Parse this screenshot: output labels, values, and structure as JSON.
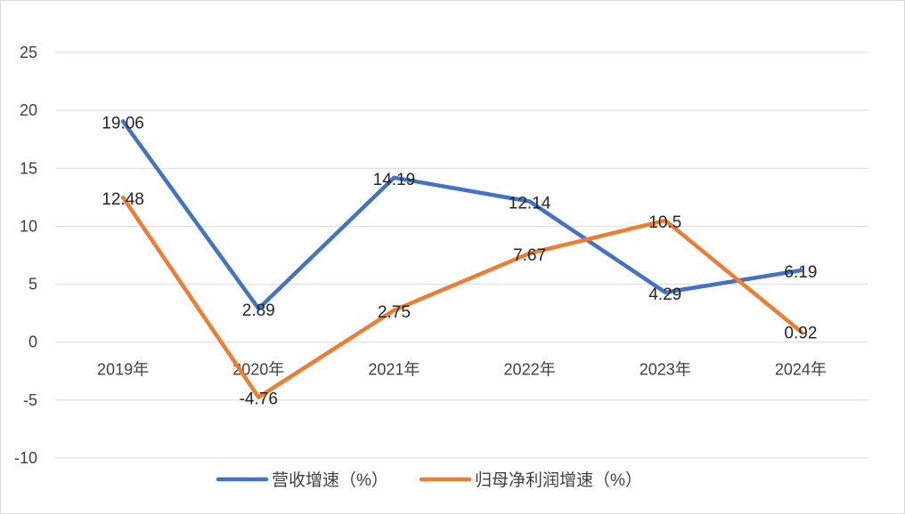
{
  "chart_data": {
    "type": "line",
    "categories": [
      "2019年",
      "2020年",
      "2021年",
      "2022年",
      "2023年",
      "2024年"
    ],
    "series": [
      {
        "name": "营收增速（%）",
        "values": [
          19.06,
          2.89,
          14.19,
          12.14,
          4.29,
          6.19
        ],
        "color": "#4472C4"
      },
      {
        "name": "归母净利润增速（%）",
        "values": [
          12.48,
          -4.76,
          2.75,
          7.67,
          10.5,
          0.92
        ],
        "color": "#ED7D31"
      }
    ],
    "value_labels": [
      [
        "19.06",
        "2.89",
        "14.19",
        "12.14",
        "4.29",
        "6.19"
      ],
      [
        "12.48",
        "-4.76",
        "2.75",
        "7.67",
        "10.5",
        "0.92"
      ]
    ],
    "yticks": [
      "25",
      "20",
      "15",
      "10",
      "5",
      "0",
      "-5",
      "-10"
    ],
    "ylim": [
      -10,
      25
    ],
    "grid": true,
    "legend_position": "bottom-center",
    "gridline_color": "#d9d9d9"
  }
}
